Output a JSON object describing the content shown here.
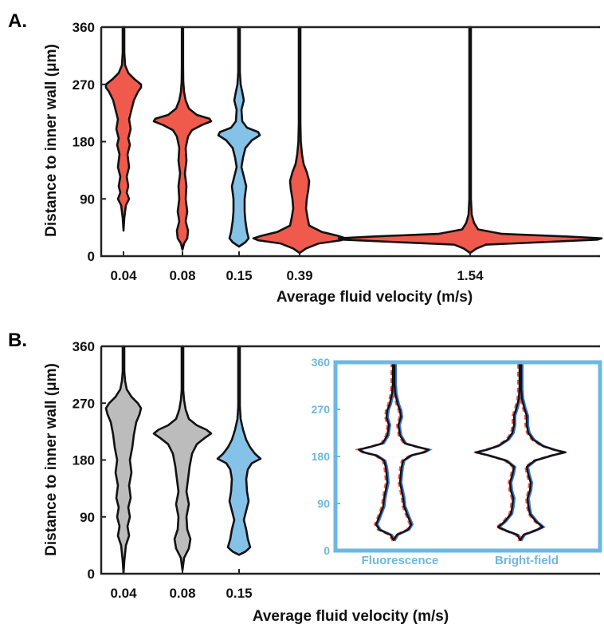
{
  "chart_data": [
    {
      "type": "violin",
      "panel_label": "A.",
      "xlabel": "Average fluid velocity (m/s)",
      "ylabel": "Distance to inner wall (μm)",
      "ylim": [
        0,
        360
      ],
      "yticks": [
        0,
        90,
        180,
        270,
        360
      ],
      "categories": [
        "0.04",
        "0.08",
        "0.15",
        "0.39",
        "1.54"
      ],
      "colors": [
        "#ef5a4c",
        "#ef5a4c",
        "#84c2e8",
        "#ef5a4c",
        "#ef5a4c"
      ],
      "violins": [
        {
          "category": "0.04",
          "min": 40,
          "max": 360,
          "mode": 270,
          "color": "#ef5a4c"
        },
        {
          "category": "0.08",
          "min": 10,
          "max": 360,
          "mode": 214,
          "color": "#ef5a4c"
        },
        {
          "category": "0.15",
          "min": 15,
          "max": 360,
          "mode": 193,
          "color": "#84c2e8"
        },
        {
          "category": "0.39",
          "min": 5,
          "max": 360,
          "mode": 28,
          "color": "#ef5a4c"
        },
        {
          "category": "1.54",
          "min": 5,
          "max": 360,
          "mode": 27,
          "color": "#ef5a4c"
        }
      ]
    },
    {
      "type": "violin",
      "panel_label": "B.",
      "xlabel": "Average fluid velocity (m/s)",
      "ylabel": "Distance to inner wall (μm)",
      "ylim": [
        0,
        360
      ],
      "yticks": [
        0,
        90,
        180,
        270,
        360
      ],
      "categories": [
        "0.04",
        "0.08",
        "0.15"
      ],
      "colors": [
        "#bcbcbc",
        "#bcbcbc",
        "#84c2e8"
      ],
      "violins": [
        {
          "category": "0.04",
          "min": 0,
          "max": 360,
          "mode": 262,
          "color": "#bcbcbc"
        },
        {
          "category": "0.08",
          "min": 5,
          "max": 360,
          "mode": 222,
          "color": "#bcbcbc"
        },
        {
          "category": "0.15",
          "min": 30,
          "max": 360,
          "mode": 182,
          "color": "#84c2e8"
        }
      ],
      "inset": {
        "ylim": [
          0,
          360
        ],
        "yticks": [
          0,
          90,
          180,
          270,
          360
        ],
        "categories": [
          "Fluorescence",
          "Bright-field"
        ],
        "frame_color": "#6cb8df",
        "violins": [
          {
            "category": "Fluorescence",
            "min": 20,
            "max": 355,
            "mode": 193
          },
          {
            "category": "Bright-field",
            "min": 20,
            "max": 355,
            "mode": 190
          }
        ]
      }
    }
  ]
}
